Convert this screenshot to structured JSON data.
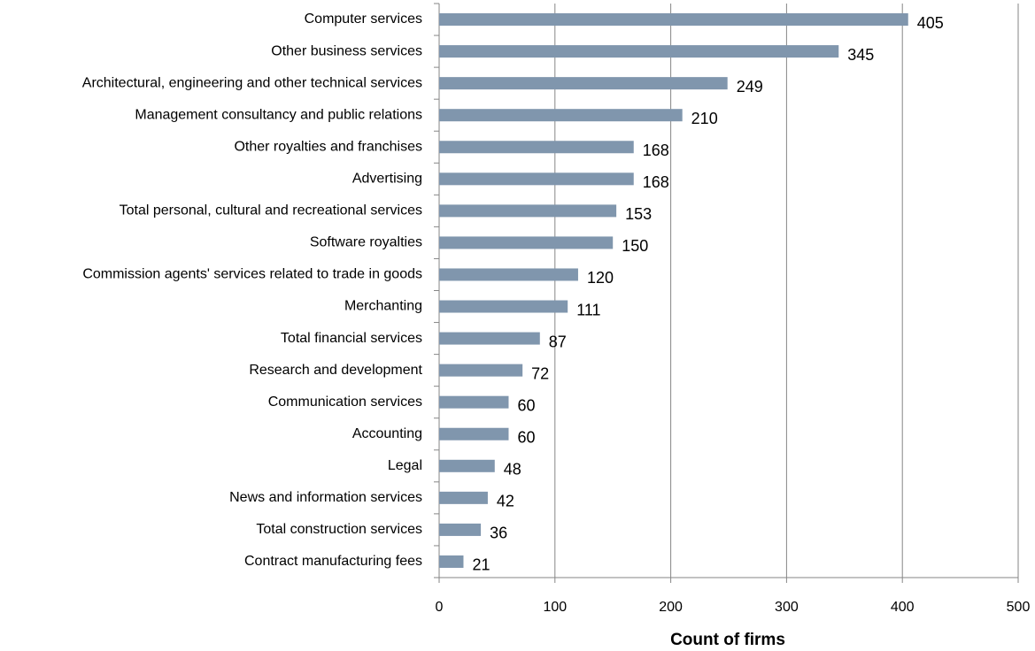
{
  "chart_data": {
    "type": "bar",
    "orientation": "horizontal",
    "x_label": "Count of firms",
    "categories": [
      "Computer services",
      "Other business services",
      "Architectural, engineering and other technical services",
      "Management consultancy and public relations",
      "Other royalties and franchises",
      "Advertising",
      "Total personal, cultural and recreational services",
      "Software royalties",
      "Commission agents' services related to trade in goods",
      "Merchanting",
      "Total financial services",
      "Research and development",
      "Communication services",
      "Accounting",
      "Legal",
      "News and information services",
      "Total construction services",
      "Contract manufacturing fees"
    ],
    "values": [
      405,
      345,
      249,
      210,
      168,
      168,
      153,
      150,
      120,
      111,
      87,
      72,
      60,
      60,
      48,
      42,
      36,
      21
    ],
    "color": "#8096ad",
    "xlim": [
      0,
      500
    ],
    "xticks": [
      0,
      100,
      200,
      300,
      400,
      500
    ],
    "grid": true
  }
}
